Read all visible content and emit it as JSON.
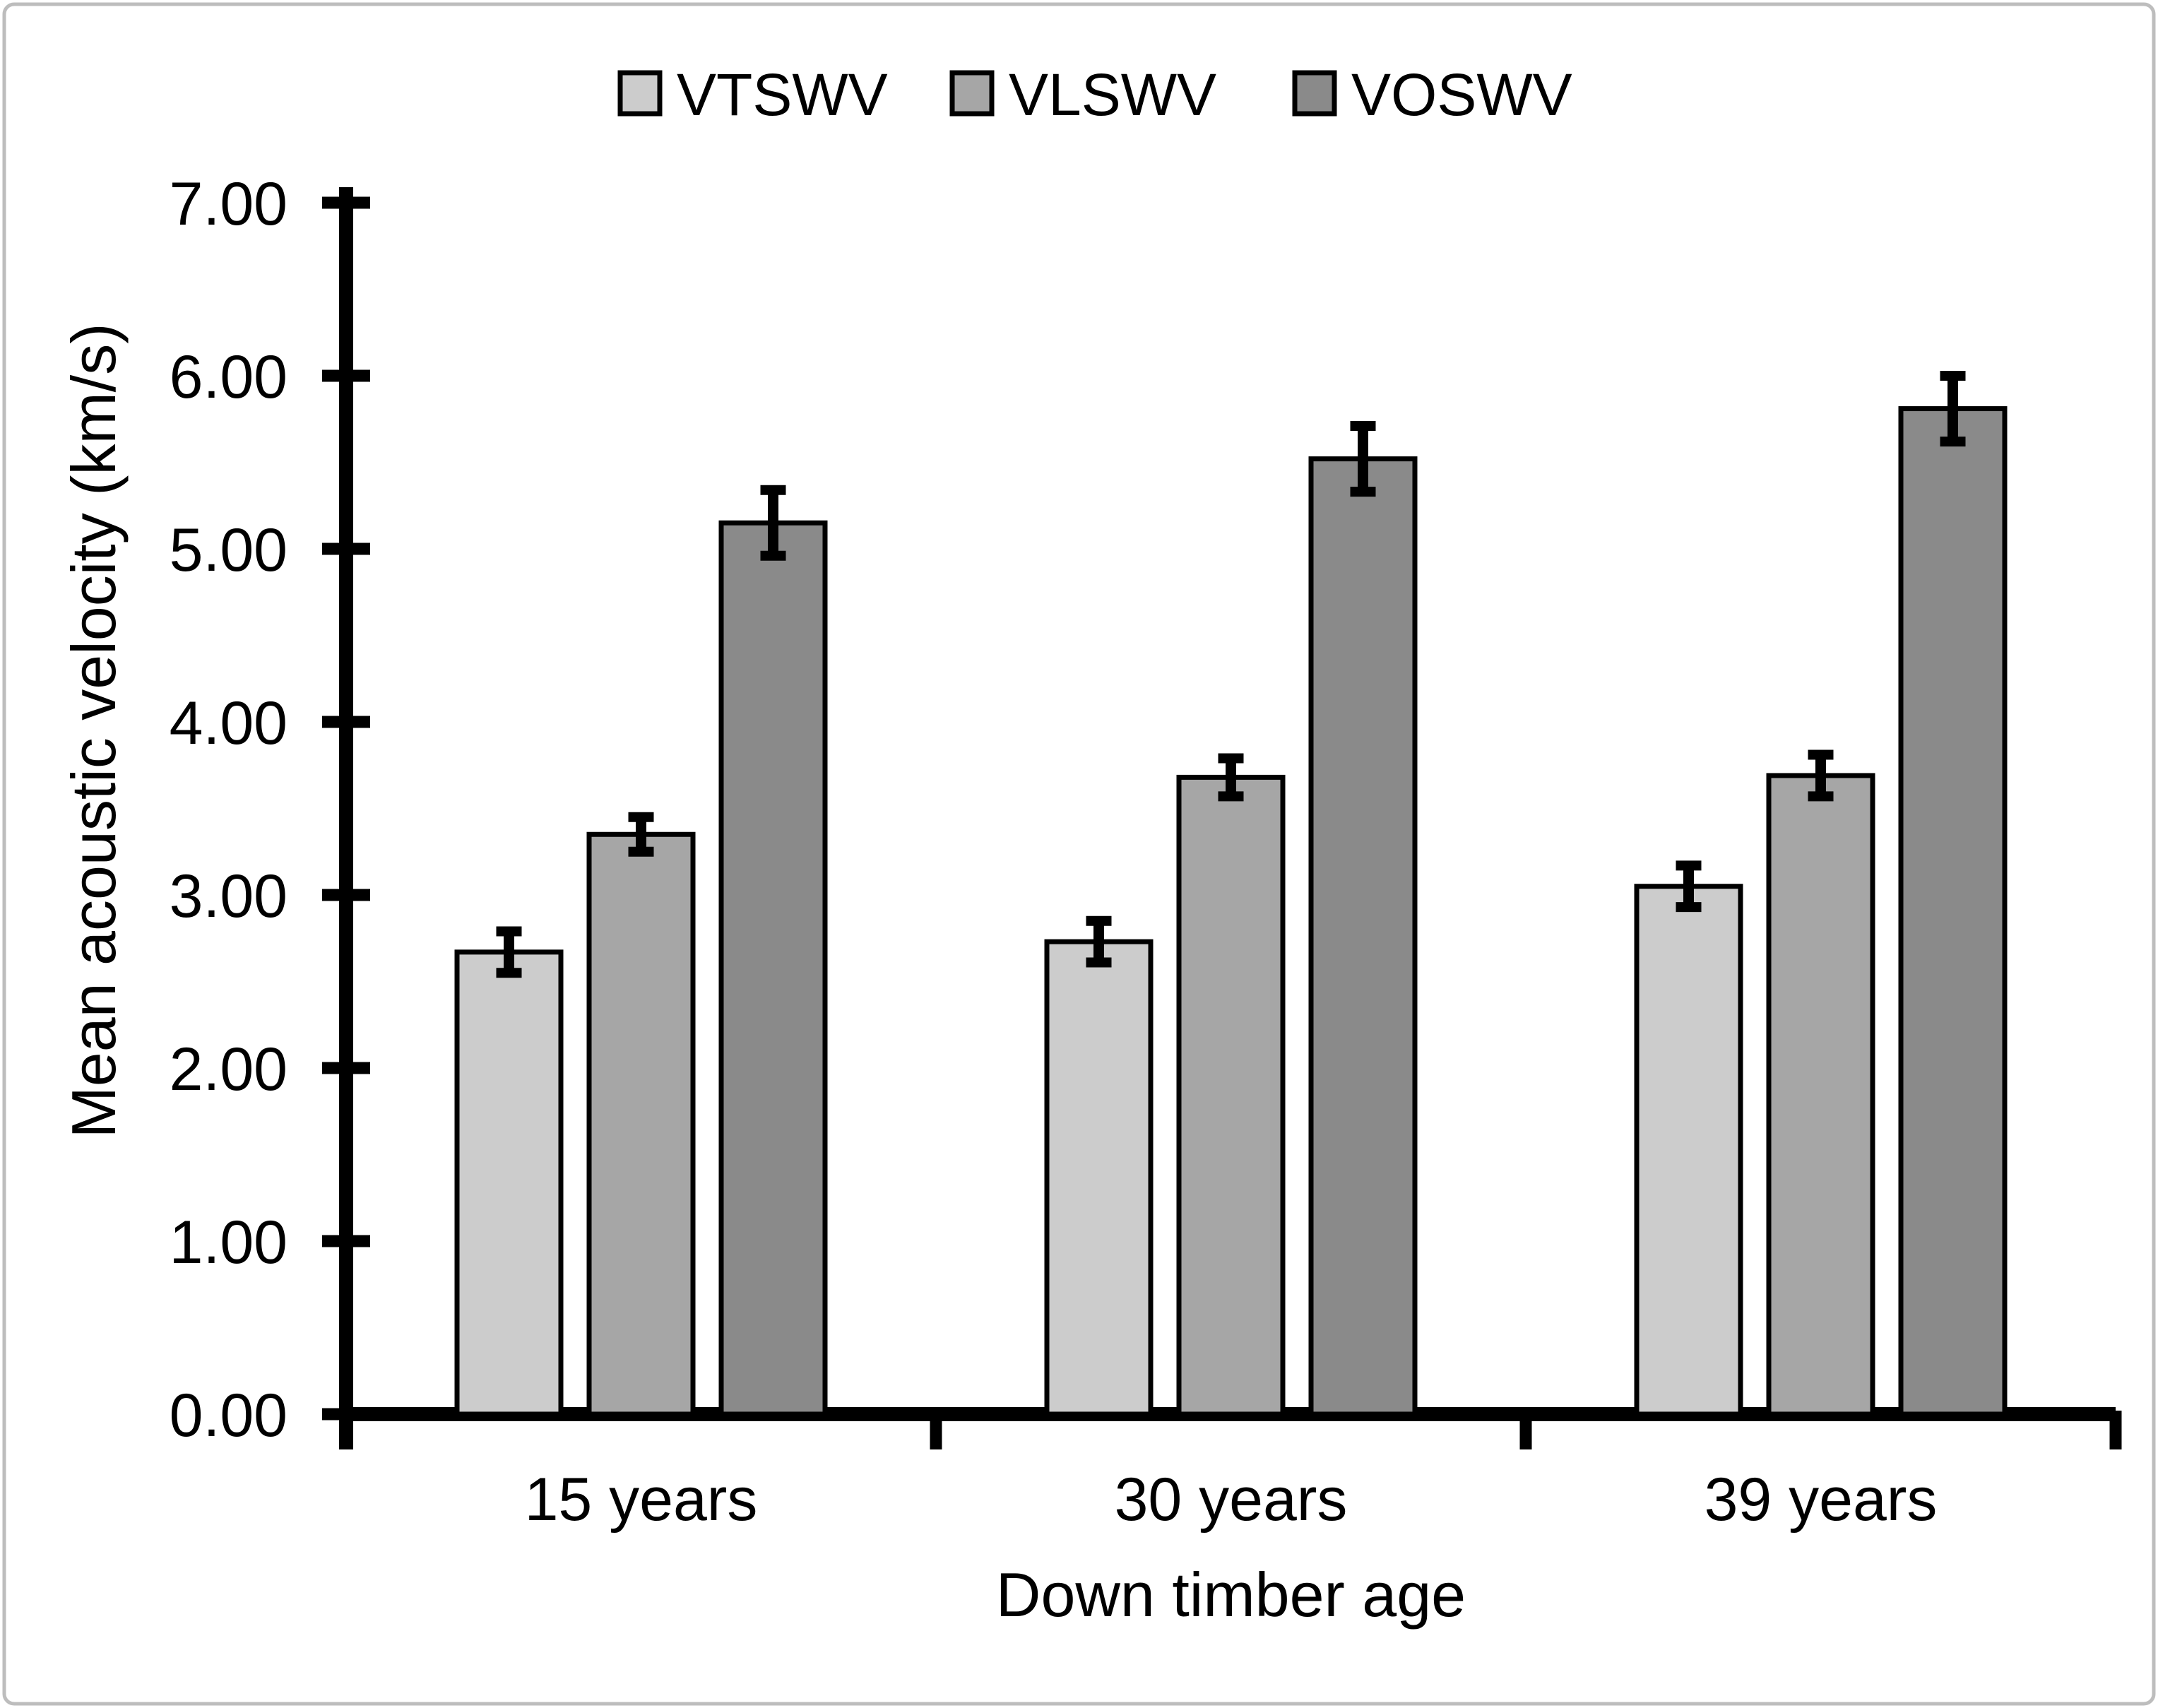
{
  "figure": {
    "background": "#ffffff",
    "border_color": "#bdbdbd",
    "axis_color": "#000000"
  },
  "chart_data": {
    "type": "bar",
    "title": "",
    "categories": [
      "15 years",
      "30 years",
      "39 years"
    ],
    "series": [
      {
        "name": "VTSWV",
        "color": "#cccccc",
        "values": [
          2.67,
          2.73,
          3.05
        ],
        "errors": [
          0.12,
          0.12,
          0.12
        ]
      },
      {
        "name": "VLSWV",
        "color": "#a6a6a6",
        "values": [
          3.35,
          3.68,
          3.69
        ],
        "errors": [
          0.1,
          0.11,
          0.12
        ]
      },
      {
        "name": "VOSWV",
        "color": "#8a8a8a",
        "values": [
          5.15,
          5.52,
          5.81
        ],
        "errors": [
          0.19,
          0.19,
          0.19
        ]
      }
    ],
    "xlabel": "Down timber age",
    "ylabel": "Mean acoustic velocity (km/s)",
    "ylim": [
      0,
      7
    ],
    "y_tick_step": 1,
    "y_ticks": [
      "0.00",
      "1.00",
      "2.00",
      "3.00",
      "4.00",
      "5.00",
      "6.00",
      "7.00"
    ],
    "legend_position": "top",
    "grid": false,
    "error_bars": true
  }
}
